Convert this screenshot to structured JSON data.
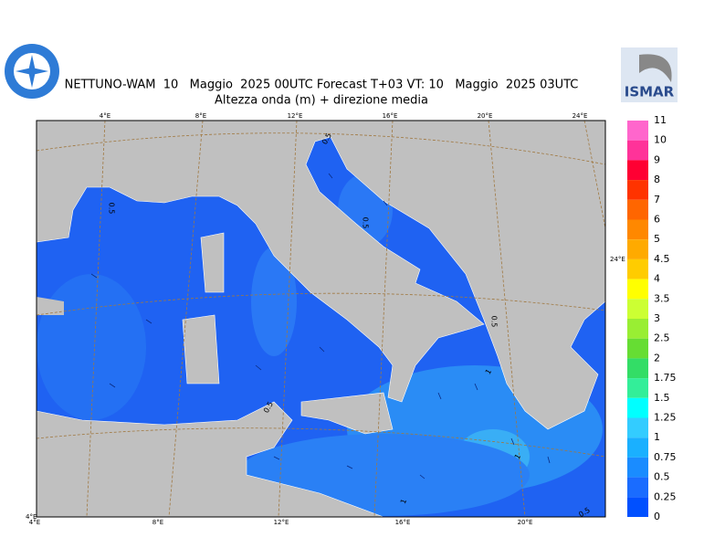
{
  "header": {
    "title": "NETTUNO-WAM  10   Maggio  2025 00UTC Forecast T+03 VT: 10   Maggio  2025 03UTC",
    "subtitle": "Altezza onda (m) + direzione media",
    "logo_text": "ISMAR"
  },
  "map": {
    "top_lon_labels": [
      "4°E",
      "8°E",
      "12°E",
      "16°E",
      "20°E",
      "24°E"
    ],
    "bottom_lon_labels": [
      "4°E",
      "8°E",
      "12°E",
      "16°E",
      "20°E"
    ],
    "corner_label": "4°E",
    "side_label": "24°E",
    "contour_labels": [
      "0.5",
      "0.5",
      "0.5",
      "0.5",
      "0.5",
      "1",
      "1",
      "1",
      "0.5"
    ]
  },
  "colorbar": {
    "labels": [
      "11",
      "10",
      "9",
      "8",
      "7",
      "6",
      "5",
      "4.5",
      "4",
      "3.5",
      "3",
      "2.5",
      "2",
      "1.75",
      "1.5",
      "1.25",
      "1",
      "0.75",
      "0.5",
      "0.25",
      "0"
    ],
    "colors": [
      "#ff66cc",
      "#ff3399",
      "#ff0033",
      "#ff3300",
      "#ff6600",
      "#ff8800",
      "#ffaa00",
      "#ffcc00",
      "#ffff00",
      "#ccff33",
      "#99ee33",
      "#66dd33",
      "#33dd66",
      "#33ee99",
      "#00ffff",
      "#33ccff",
      "#1ab0ff",
      "#1a8cff",
      "#1a6cff",
      "#0050ff"
    ]
  }
}
